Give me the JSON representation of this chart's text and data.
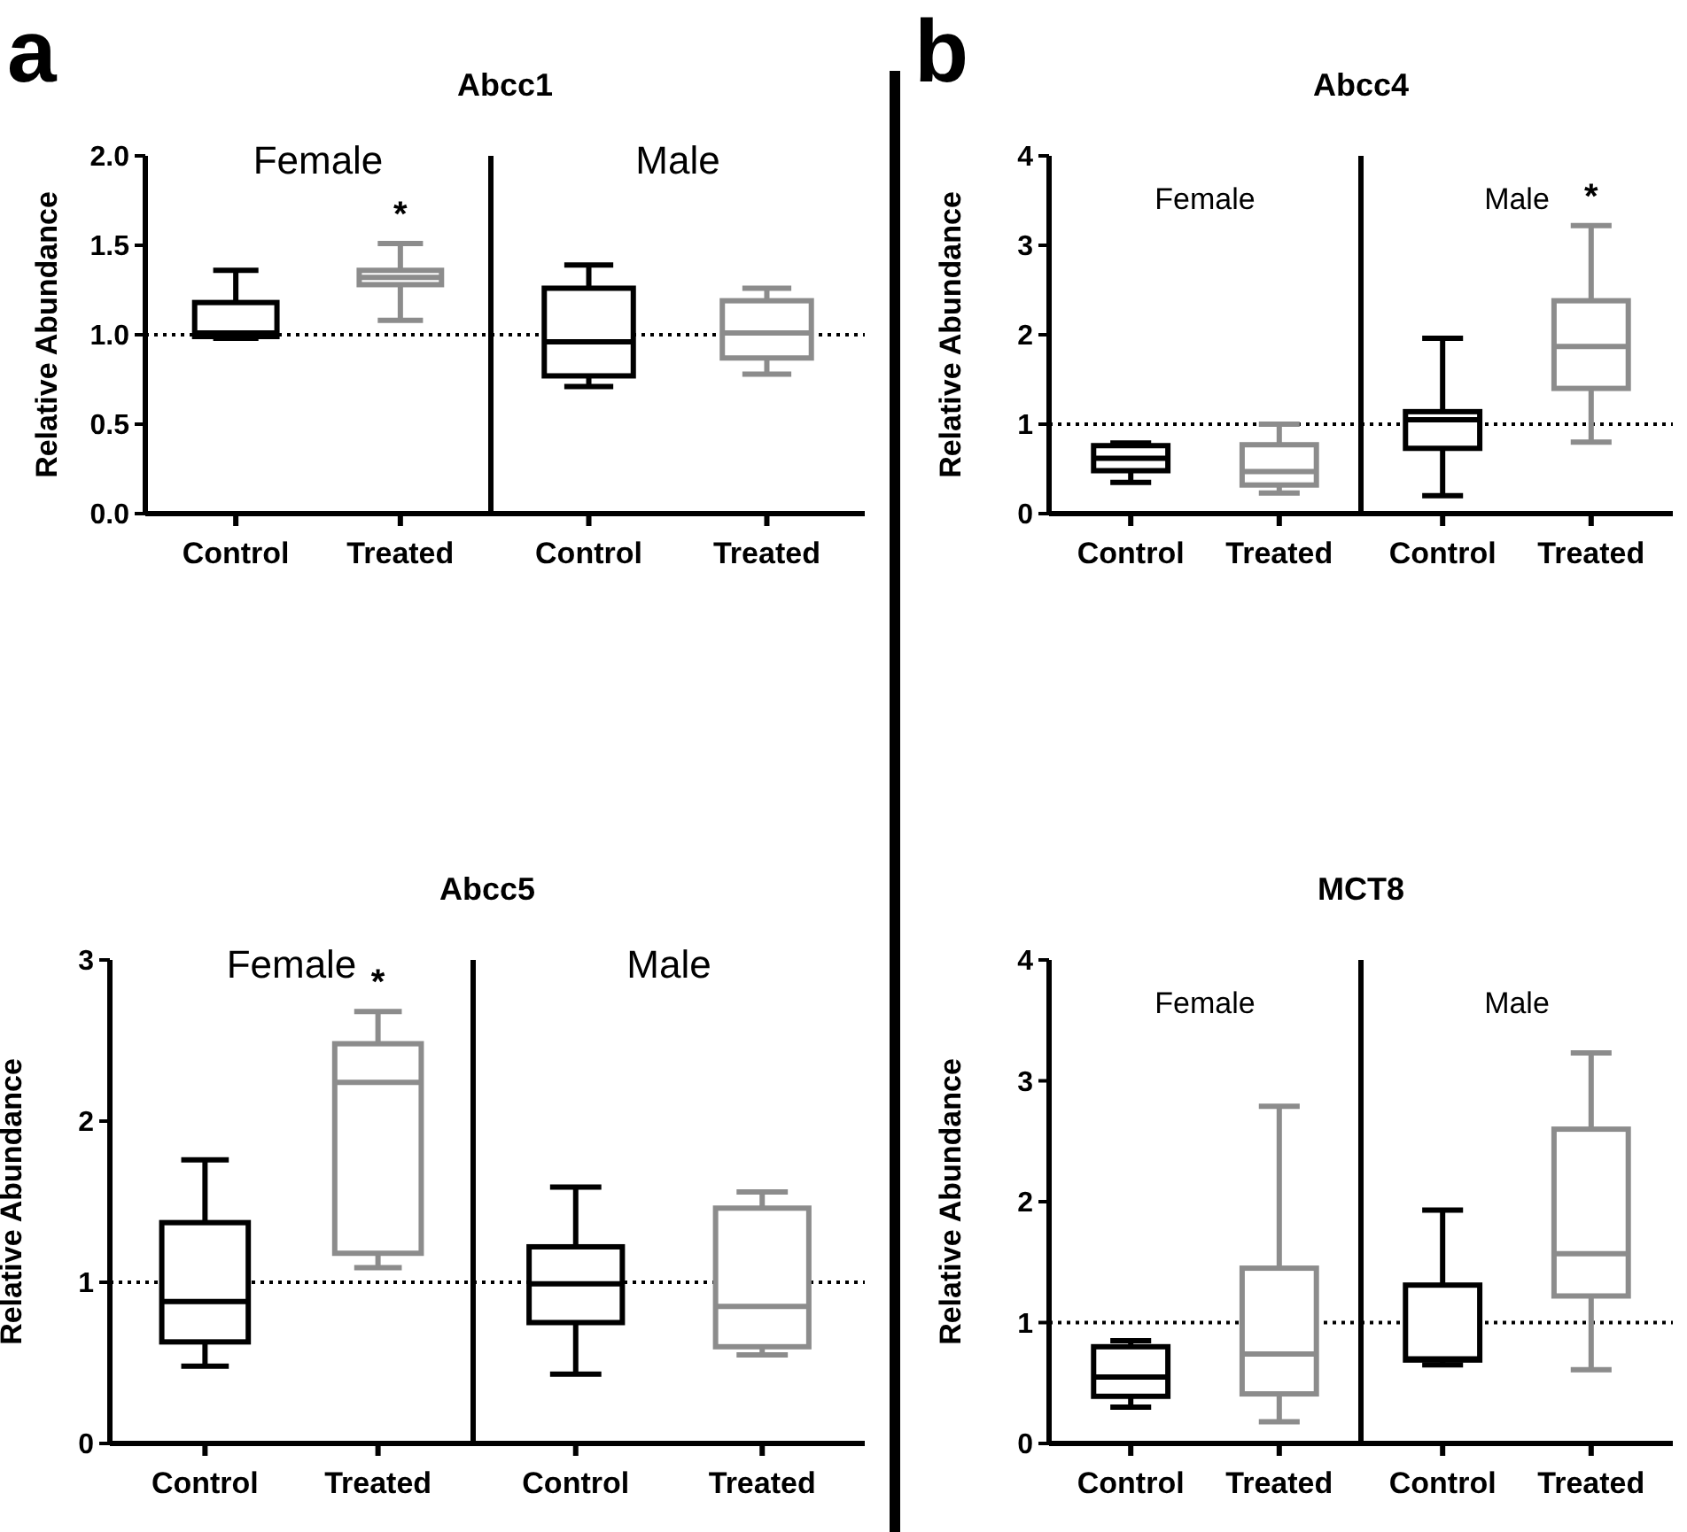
{
  "chart_data": [
    {
      "type": "box",
      "title": "Abcc1",
      "subtitle": "Female",
      "ylabel": "Relative Abundance",
      "categories": [
        "Control",
        "Treated"
      ],
      "colors": [
        "#000000",
        "#8c8c8c"
      ],
      "boxes": [
        {
          "low": 0.98,
          "q1": 0.99,
          "median": 1.01,
          "q3": 1.18,
          "high": 1.36
        },
        {
          "low": 1.08,
          "q1": 1.28,
          "median": 1.32,
          "q3": 1.36,
          "high": 1.51
        }
      ],
      "ylim": [
        0,
        2
      ],
      "yticks": [
        {
          "value": 0,
          "label": "0.0"
        },
        {
          "value": 0.5,
          "label": "0.5"
        },
        {
          "value": 1,
          "label": "1.0"
        },
        {
          "value": 1.5,
          "label": "1.5"
        },
        {
          "value": 2,
          "label": "2.0"
        }
      ],
      "ref_lines": [
        {
          "axis": "y",
          "value": 1,
          "line_style": "dotted",
          "color": "#000000"
        }
      ],
      "annotations": [
        "a",
        "*"
      ]
    },
    {
      "type": "box",
      "subtitle": "Male",
      "categories": [
        "Control",
        "Treated"
      ],
      "colors": [
        "#000000",
        "#8c8c8c"
      ],
      "boxes": [
        {
          "low": 0.71,
          "q1": 0.77,
          "median": 0.96,
          "q3": 1.26,
          "high": 1.39
        },
        {
          "low": 0.78,
          "q1": 0.87,
          "median": 1.01,
          "q3": 1.19,
          "high": 1.26
        }
      ],
      "ylim": [
        0,
        2
      ],
      "tick_labels": "x",
      "ref_lines": [
        {
          "axis": "y",
          "value": 1,
          "line_style": "dotted",
          "color": "#000000"
        }
      ]
    },
    {
      "type": "box",
      "title": "Abcc4",
      "subtitle": "Female",
      "ylabel": "Relative Abundance",
      "categories": [
        "Control",
        "Treated"
      ],
      "colors": [
        "#000000",
        "#8c8c8c"
      ],
      "boxes": [
        {
          "low": 0.35,
          "q1": 0.48,
          "median": 0.62,
          "q3": 0.76,
          "high": 0.79
        },
        {
          "low": 0.23,
          "q1": 0.32,
          "median": 0.47,
          "q3": 0.77,
          "high": 1.0
        }
      ],
      "ylim": [
        0,
        4
      ],
      "yticks": [
        0,
        1,
        2,
        3,
        4
      ],
      "ref_lines": [
        {
          "axis": "y",
          "value": 1,
          "line_style": "dotted",
          "color": "#000000"
        }
      ],
      "annotations": [
        "b"
      ]
    },
    {
      "type": "box",
      "subtitle": "Male",
      "categories": [
        "Control",
        "Treated"
      ],
      "colors": [
        "#000000",
        "#8c8c8c"
      ],
      "boxes": [
        {
          "low": 0.2,
          "q1": 0.73,
          "median": 1.05,
          "q3": 1.14,
          "high": 1.96
        },
        {
          "low": 0.8,
          "q1": 1.4,
          "median": 1.87,
          "q3": 2.38,
          "high": 3.22
        }
      ],
      "ylim": [
        0,
        4
      ],
      "tick_labels": "x",
      "ref_lines": [
        {
          "axis": "y",
          "value": 1,
          "line_style": "dotted",
          "color": "#000000"
        }
      ],
      "annotations": [
        "*"
      ]
    },
    {
      "type": "box",
      "title": "Abcc5",
      "subtitle": "Female",
      "ylabel": "Relative Abundance",
      "categories": [
        "Control",
        "Treated"
      ],
      "colors": [
        "#000000",
        "#8c8c8c"
      ],
      "boxes": [
        {
          "low": 0.48,
          "q1": 0.63,
          "median": 0.88,
          "q3": 1.37,
          "high": 1.76
        },
        {
          "low": 1.09,
          "q1": 1.18,
          "median": 2.24,
          "q3": 2.48,
          "high": 2.68
        }
      ],
      "ylim": [
        0,
        3
      ],
      "yticks": [
        0,
        1,
        2,
        3
      ],
      "ref_lines": [
        {
          "axis": "y",
          "value": 1,
          "line_style": "dotted",
          "color": "#000000"
        }
      ],
      "annotations": [
        "*"
      ]
    },
    {
      "type": "box",
      "subtitle": "Male",
      "categories": [
        "Control",
        "Treated"
      ],
      "colors": [
        "#000000",
        "#8c8c8c"
      ],
      "boxes": [
        {
          "low": 0.43,
          "q1": 0.75,
          "median": 0.99,
          "q3": 1.22,
          "high": 1.59
        },
        {
          "low": 0.55,
          "q1": 0.6,
          "median": 0.85,
          "q3": 1.46,
          "high": 1.56
        }
      ],
      "ylim": [
        0,
        3
      ],
      "tick_labels": "x",
      "ref_lines": [
        {
          "axis": "y",
          "value": 1,
          "line_style": "dotted",
          "color": "#000000"
        }
      ]
    },
    {
      "type": "box",
      "title": "MCT8",
      "subtitle": "Female",
      "ylabel": "Relative Abundance",
      "categories": [
        "Control",
        "Treated"
      ],
      "colors": [
        "#000000",
        "#8c8c8c"
      ],
      "boxes": [
        {
          "low": 0.3,
          "q1": 0.39,
          "median": 0.55,
          "q3": 0.8,
          "high": 0.85
        },
        {
          "low": 0.18,
          "q1": 0.41,
          "median": 0.74,
          "q3": 1.45,
          "high": 2.79
        }
      ],
      "ylim": [
        0,
        4
      ],
      "yticks": [
        0,
        1,
        2,
        3,
        4
      ],
      "ref_lines": [
        {
          "axis": "y",
          "value": 1,
          "line_style": "dotted",
          "color": "#000000"
        }
      ]
    },
    {
      "type": "box",
      "subtitle": "Male",
      "categories": [
        "Control",
        "Treated"
      ],
      "colors": [
        "#000000",
        "#8c8c8c"
      ],
      "boxes": [
        {
          "low": 0.65,
          "q1": 0.69,
          "median": 0.7,
          "q3": 1.31,
          "high": 1.93
        },
        {
          "low": 0.61,
          "q1": 1.22,
          "median": 1.57,
          "q3": 2.6,
          "high": 3.23
        }
      ],
      "ylim": [
        0,
        4
      ],
      "tick_labels": "x",
      "ref_lines": [
        {
          "axis": "y",
          "value": 1,
          "line_style": "dotted",
          "color": "#000000"
        }
      ]
    }
  ]
}
